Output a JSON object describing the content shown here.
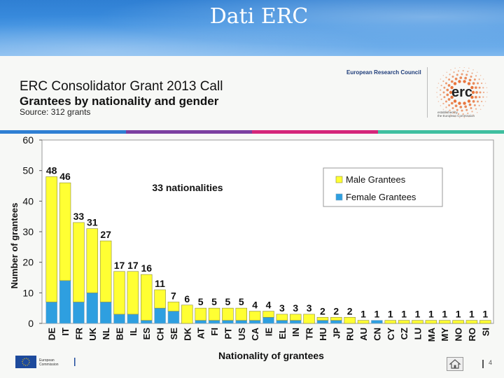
{
  "slide": {
    "title": "Dati ERC"
  },
  "header": {
    "title": "ERC Consolidator Grant 2013 Call",
    "subtitle": "Grantees by nationality and gender",
    "source": "Source: 312 grants",
    "org_name": "European Research Council",
    "logo_text": "erc",
    "logo_tag_1": "established by",
    "logo_tag_2": "the European Commission"
  },
  "colors": {
    "male": "#ffff33",
    "female": "#2e9fe0",
    "bar_stroke": "#8a8a40",
    "band": [
      "#2f7fd3",
      "#7b3fa0",
      "#d4267a",
      "#3fbf9f",
      "#36a7d8"
    ]
  },
  "chart_data": {
    "type": "bar",
    "stacked": true,
    "xlabel": "Nationality of grantees",
    "ylabel": "Number of grantees",
    "ylim": [
      0,
      60
    ],
    "yticks": [
      0,
      10,
      20,
      30,
      40,
      50,
      60
    ],
    "grid": false,
    "legend_position": "top-right",
    "annotation": "33 nationalities",
    "categories": [
      "DE",
      "IT",
      "FR",
      "UK",
      "NL",
      "BE",
      "IL",
      "ES",
      "CH",
      "SE",
      "DK",
      "AT",
      "FI",
      "PT",
      "US",
      "CA",
      "IE",
      "EL",
      "IN",
      "TR",
      "HU",
      "JP",
      "RU",
      "AU",
      "CN",
      "CY",
      "CZ",
      "LU",
      "MA",
      "MY",
      "NO",
      "RO",
      "SI"
    ],
    "totals": [
      48,
      46,
      33,
      31,
      27,
      17,
      17,
      16,
      11,
      7,
      6,
      5,
      5,
      5,
      5,
      4,
      4,
      3,
      3,
      3,
      2,
      2,
      2,
      1,
      1,
      1,
      1,
      1,
      1,
      1,
      1,
      1,
      1
    ],
    "total_labels": [
      "48",
      "46",
      "33",
      "31",
      "27",
      "17",
      "17",
      "16",
      "11",
      "7",
      "6",
      "5",
      "5",
      "5",
      "5",
      "4",
      "4",
      "3",
      "3",
      "3",
      "2",
      "2",
      "2",
      "1",
      "1",
      "1",
      "1",
      "1",
      "1",
      "1",
      "1",
      "1",
      "1"
    ],
    "series": [
      {
        "name": "Female Grantees",
        "values": [
          7,
          14,
          7,
          10,
          7,
          3,
          3,
          1,
          5,
          4,
          0,
          1,
          1,
          1,
          1,
          1,
          2,
          1,
          1,
          0,
          1,
          1,
          0,
          0,
          1,
          0,
          0,
          0,
          0,
          0,
          0,
          0,
          0
        ]
      },
      {
        "name": "Male Grantees",
        "values": [
          41,
          32,
          26,
          21,
          20,
          14,
          14,
          15,
          6,
          3,
          6,
          4,
          4,
          4,
          4,
          3,
          2,
          2,
          2,
          3,
          1,
          1,
          2,
          1,
          0,
          1,
          1,
          1,
          1,
          1,
          1,
          1,
          1
        ]
      }
    ]
  },
  "footer": {
    "page_number": "4",
    "ec_label_1": "European",
    "ec_label_2": "Commission"
  }
}
